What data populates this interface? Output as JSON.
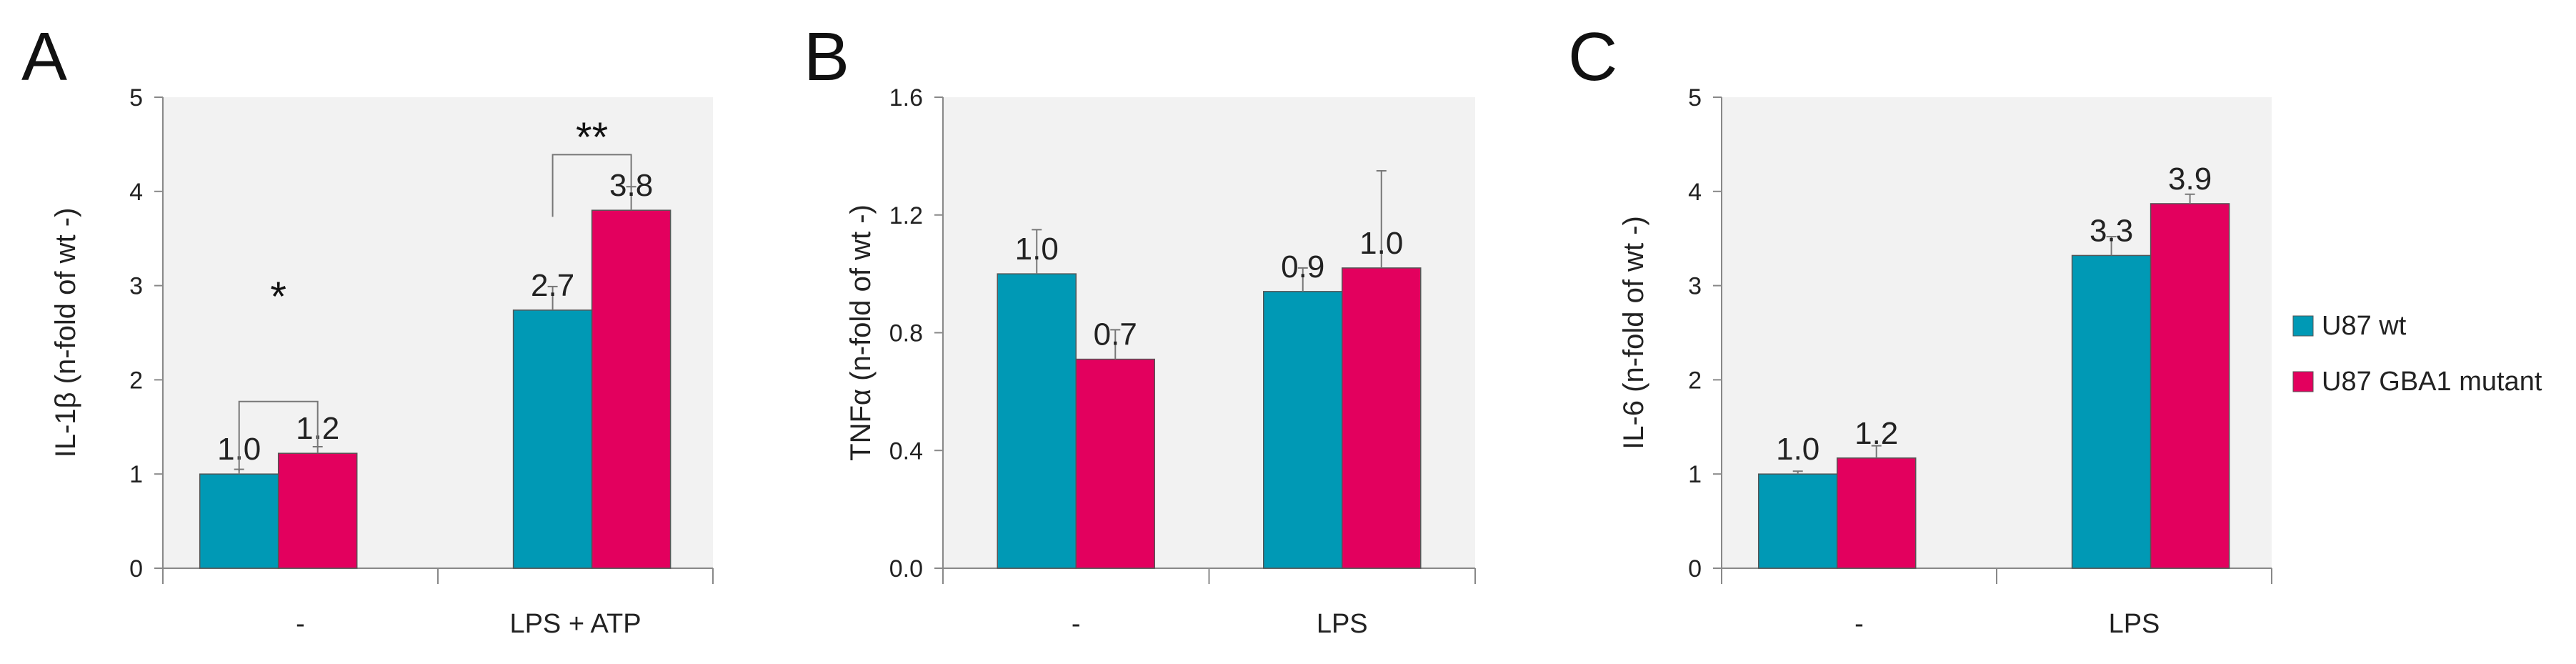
{
  "legend": [
    {
      "name": "U87 wt",
      "color": "#0099B5"
    },
    {
      "name": "U87 GBA1 mutant",
      "color": "#E3005E"
    }
  ],
  "chart_data": [
    {
      "type": "bar",
      "panel_label": "A",
      "ylabel": "IL-1β (n-fold of wt -)",
      "ylim": [
        0,
        5
      ],
      "yticks": [
        "0",
        "1",
        "2",
        "3",
        "4",
        "5"
      ],
      "categories": [
        "-",
        "LPS + ATP"
      ],
      "series": [
        {
          "name": "U87 wt",
          "values": [
            1.0,
            2.74
          ],
          "errors": [
            0.05,
            0.25
          ],
          "labels": [
            "1.0",
            "2.7"
          ]
        },
        {
          "name": "U87 GBA1 mutant",
          "values": [
            1.22,
            3.8
          ],
          "errors": [
            0.07,
            0.25
          ],
          "labels": [
            "1.2",
            "3.8"
          ]
        }
      ],
      "significance": [
        {
          "category": 0,
          "text": "*"
        },
        {
          "category": 1,
          "text": "**"
        }
      ],
      "grid": false
    },
    {
      "type": "bar",
      "panel_label": "B",
      "ylabel": "TNFα (n-fold of wt -)",
      "ylim": [
        0,
        1.6
      ],
      "yticks": [
        "0.0",
        "0.4",
        "0.8",
        "1.2",
        "1.6"
      ],
      "categories": [
        "-",
        "LPS"
      ],
      "series": [
        {
          "name": "U87 wt",
          "values": [
            1.0,
            0.94
          ],
          "errors": [
            0.15,
            0.08
          ],
          "labels": [
            "1.0",
            "0.9"
          ]
        },
        {
          "name": "U87 GBA1 mutant",
          "values": [
            0.71,
            1.02
          ],
          "errors": [
            0.1,
            0.33
          ],
          "labels": [
            "0.7",
            "1.0"
          ]
        }
      ],
      "significance": [],
      "grid": false
    },
    {
      "type": "bar",
      "panel_label": "C",
      "ylabel": "IL-6 (n-fold of wt -)",
      "ylim": [
        0,
        5
      ],
      "yticks": [
        "0",
        "1",
        "2",
        "3",
        "4",
        "5"
      ],
      "categories": [
        "-",
        "LPS"
      ],
      "series": [
        {
          "name": "U87 wt",
          "values": [
            1.0,
            3.32
          ],
          "errors": [
            0.03,
            0.2
          ],
          "labels": [
            "1.0",
            "3.3"
          ]
        },
        {
          "name": "U87 GBA1 mutant",
          "values": [
            1.17,
            3.87
          ],
          "errors": [
            0.13,
            0.1
          ],
          "labels": [
            "1.2",
            "3.9"
          ]
        }
      ],
      "significance": [],
      "grid": false
    }
  ]
}
